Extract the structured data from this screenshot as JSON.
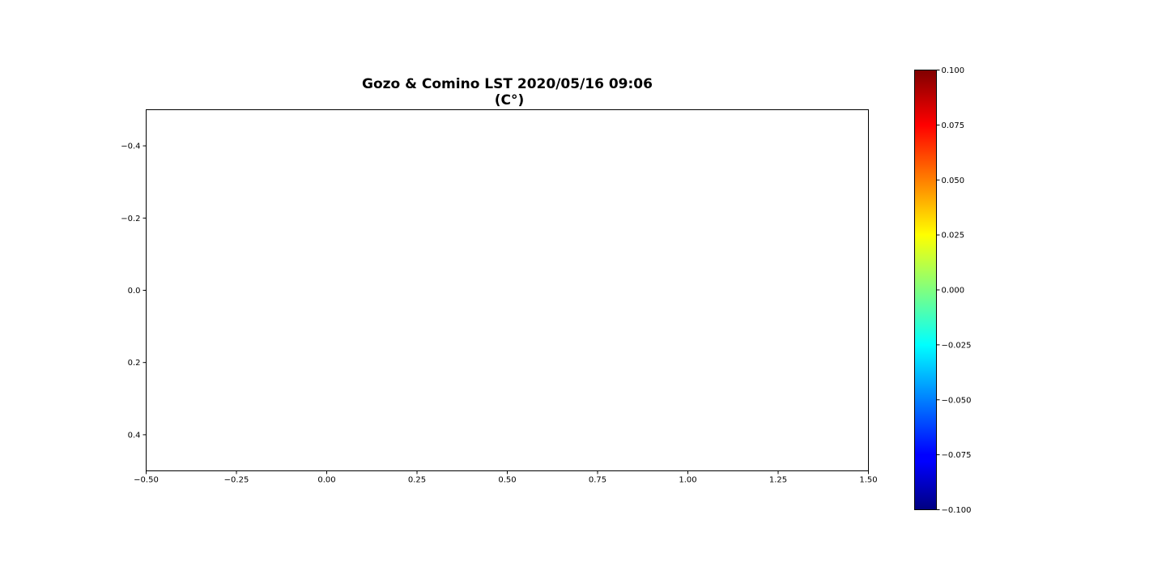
{
  "chart_data": {
    "type": "heatmap",
    "title": "Gozo & Comino LST 2020/05/16 09:06",
    "subtitle": "(C°)",
    "xlim": [
      -0.5,
      1.5
    ],
    "ylim": [
      0.5,
      -0.5
    ],
    "y_inverted": true,
    "x_ticks": [
      "−0.50",
      "−0.25",
      "0.00",
      "0.25",
      "0.50",
      "0.75",
      "1.00",
      "1.25",
      "1.50"
    ],
    "x_tick_values": [
      -0.5,
      -0.25,
      0.0,
      0.25,
      0.5,
      0.75,
      1.0,
      1.25,
      1.5
    ],
    "y_ticks": [
      "−0.4",
      "−0.2",
      "0.0",
      "0.2",
      "0.4"
    ],
    "y_tick_values": [
      -0.4,
      -0.2,
      0.0,
      0.2,
      0.4
    ],
    "grid": false,
    "data": [],
    "colorbar": {
      "colormap": "jet",
      "range": [
        -0.1,
        0.1
      ],
      "ticks": [
        "0.100",
        "0.075",
        "0.050",
        "0.025",
        "0.000",
        "−0.025",
        "−0.050",
        "−0.075",
        "−0.100"
      ],
      "tick_values": [
        0.1,
        0.075,
        0.05,
        0.025,
        0.0,
        -0.025,
        -0.05,
        -0.075,
        -0.1
      ],
      "colors": [
        "#000080",
        "#0000ff",
        "#00ffff",
        "#ffff00",
        "#ff0000",
        "#800000"
      ]
    }
  }
}
